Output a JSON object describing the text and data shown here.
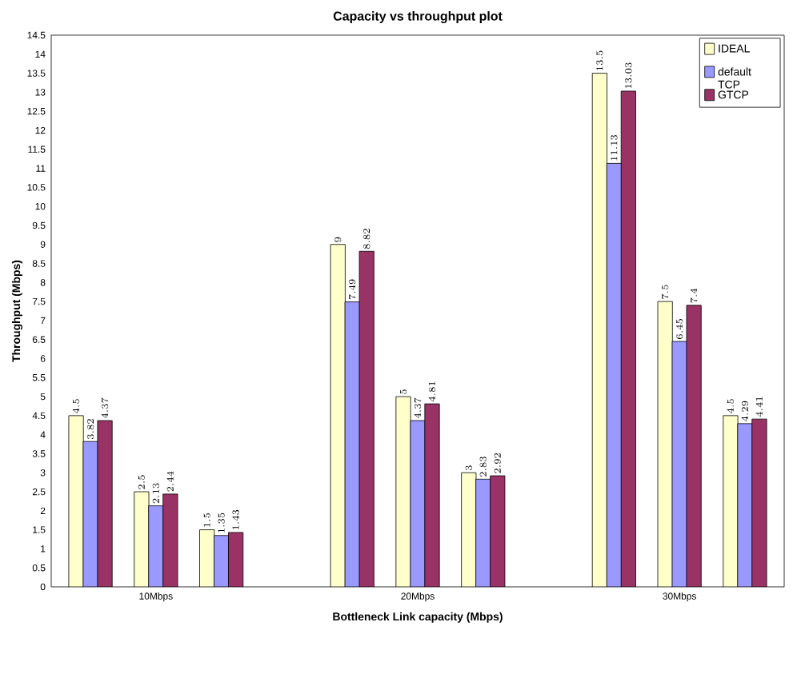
{
  "chart_data": {
    "type": "bar",
    "title": "Capacity vs throughput plot",
    "xlabel": "Bottleneck Link capacity (Mbps)",
    "ylabel": "Throughput (Mbps)",
    "categories": [
      null,
      "10Mbps",
      null,
      null,
      null,
      "20Mbps",
      null,
      null,
      null,
      "30Mbps",
      null
    ],
    "series": [
      {
        "name": "IDEAL",
        "color": "#ffffcc",
        "values": [
          4.5,
          2.5,
          1.5,
          null,
          9,
          5,
          3,
          null,
          13.5,
          7.5,
          4.5
        ]
      },
      {
        "name": "default TCP",
        "color": "#9999ff",
        "values": [
          3.82,
          2.13,
          1.35,
          null,
          7.49,
          4.37,
          2.83,
          null,
          11.13,
          6.45,
          4.29
        ]
      },
      {
        "name": "GTCP",
        "color": "#993366",
        "values": [
          4.37,
          2.44,
          1.43,
          null,
          8.82,
          4.81,
          2.92,
          null,
          13.03,
          7.4,
          4.41
        ]
      }
    ],
    "ylim": [
      0,
      14.5
    ],
    "yticks": [
      0,
      0.5,
      1,
      1.5,
      2,
      2.5,
      3,
      3.5,
      4,
      4.5,
      5,
      5.5,
      6,
      6.5,
      7,
      7.5,
      8,
      8.5,
      9,
      9.5,
      10,
      10.5,
      11,
      11.5,
      12,
      12.5,
      13,
      13.5,
      14,
      14.5
    ],
    "data_labels": true,
    "legend": "top right",
    "grid": false
  }
}
